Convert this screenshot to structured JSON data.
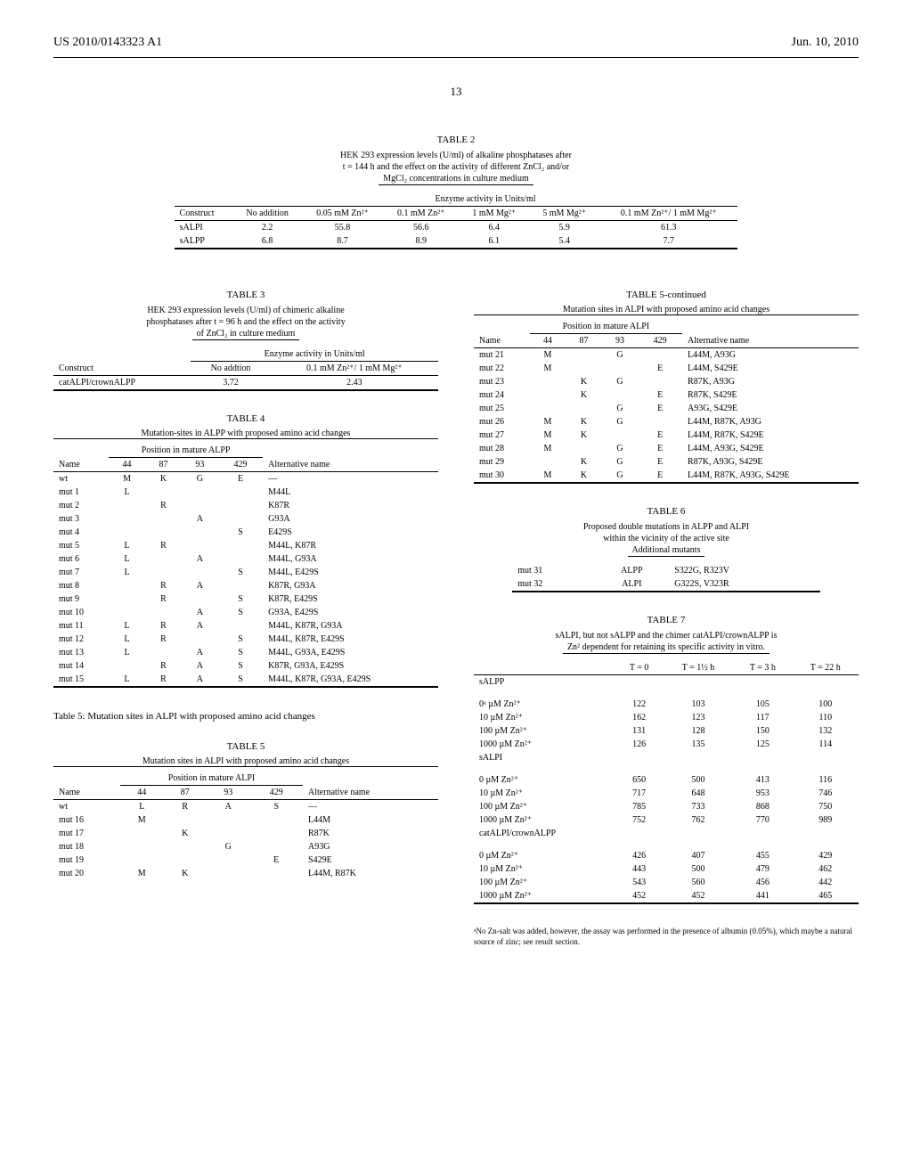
{
  "header": {
    "left": "US 2010/0143323 A1",
    "right": "Jun. 10, 2010"
  },
  "page_number": "13",
  "table2": {
    "title": "TABLE 2",
    "caption1": "HEK 293 expression levels (U/ml) of alkaline phosphatases after",
    "caption2": "t = 144 h and the effect on the activity of different ZnCl₂ and/or",
    "caption3": "MgCl₂ concentrations in culture medium",
    "span_header": "Enzyme activity in Units/ml",
    "col_construct": "Construct",
    "cols": [
      "No addition",
      "0.05 mM Zn²⁺",
      "0.1 mM Zn²⁺",
      "1 mM Mg²⁺",
      "5 mM Mg²⁺",
      "0.1 mM Zn²⁺/ 1 mM Mg²⁺"
    ],
    "rows": [
      {
        "name": "sALPI",
        "vals": [
          "2.2",
          "55.8",
          "56.6",
          "6.4",
          "5.9",
          "61.3"
        ]
      },
      {
        "name": "sALPP",
        "vals": [
          "6.8",
          "8.7",
          "8.9",
          "6.1",
          "5.4",
          "7.7"
        ]
      }
    ]
  },
  "table3": {
    "title": "TABLE 3",
    "caption1": "HEK 293 expression levels (U/ml) of chimeric alkaline",
    "caption2": "phosphatases after t = 96 h and the effect on the activity",
    "caption3": "of ZnCl₂ in culture medium",
    "span_header": "Enzyme activity in Units/ml",
    "col_construct": "Construct",
    "cols": [
      "No addtion",
      "0.1 mM Zn²⁺/ 1 mM Mg²⁺"
    ],
    "rows": [
      {
        "name": "catALPI/crownALPP",
        "vals": [
          "3.72",
          "2.43"
        ]
      }
    ]
  },
  "table4": {
    "title": "TABLE 4",
    "caption": "Mutation-sites in ALPP with proposed amino acid changes",
    "subhead": "Position in mature ALPP",
    "col_name": "Name",
    "positions": [
      "44",
      "87",
      "93",
      "429"
    ],
    "col_alt": "Alternative name",
    "rows": [
      {
        "n": "wt",
        "p": [
          "M",
          "K",
          "G",
          "E"
        ],
        "a": "—"
      },
      {
        "n": "mut 1",
        "p": [
          "L",
          "",
          "",
          ""
        ],
        "a": "M44L"
      },
      {
        "n": "mut 2",
        "p": [
          "",
          "R",
          "",
          ""
        ],
        "a": "K87R"
      },
      {
        "n": "mut 3",
        "p": [
          "",
          "",
          "A",
          ""
        ],
        "a": "G93A"
      },
      {
        "n": "mut 4",
        "p": [
          "",
          "",
          "",
          "S"
        ],
        "a": "E429S"
      },
      {
        "n": "mut 5",
        "p": [
          "L",
          "R",
          "",
          ""
        ],
        "a": "M44L, K87R"
      },
      {
        "n": "mut 6",
        "p": [
          "L",
          "",
          "A",
          ""
        ],
        "a": "M44L, G93A"
      },
      {
        "n": "mut 7",
        "p": [
          "L",
          "",
          "",
          "S"
        ],
        "a": "M44L, E429S"
      },
      {
        "n": "mut 8",
        "p": [
          "",
          "R",
          "A",
          ""
        ],
        "a": "K87R, G93A"
      },
      {
        "n": "mut 9",
        "p": [
          "",
          "R",
          "",
          "S"
        ],
        "a": "K87R, E429S"
      },
      {
        "n": "mut 10",
        "p": [
          "",
          "",
          "A",
          "S"
        ],
        "a": "G93A, E429S"
      },
      {
        "n": "mut 11",
        "p": [
          "L",
          "R",
          "A",
          ""
        ],
        "a": "M44L, K87R, G93A"
      },
      {
        "n": "mut 12",
        "p": [
          "L",
          "R",
          "",
          "S"
        ],
        "a": "M44L, K87R, E429S"
      },
      {
        "n": "mut 13",
        "p": [
          "L",
          "",
          "A",
          "S"
        ],
        "a": "M44L, G93A, E429S"
      },
      {
        "n": "mut 14",
        "p": [
          "",
          "R",
          "A",
          "S"
        ],
        "a": "K87R, G93A, E429S"
      },
      {
        "n": "mut 15",
        "p": [
          "L",
          "R",
          "A",
          "S"
        ],
        "a": "M44L, K87R, G93A, E429S"
      }
    ]
  },
  "table5_intro": "Table 5: Mutation sites in ALPI with proposed amino acid changes",
  "table5": {
    "title": "TABLE 5",
    "caption": "Mutation sites in ALPI with proposed amino acid changes",
    "subhead": "Position in mature ALPI",
    "col_name": "Name",
    "positions": [
      "44",
      "87",
      "93",
      "429"
    ],
    "col_alt": "Alternative name",
    "rows_a": [
      {
        "n": "wt",
        "p": [
          "L",
          "R",
          "A",
          "S"
        ],
        "a": "—"
      },
      {
        "n": "mut 16",
        "p": [
          "M",
          "",
          "",
          ""
        ],
        "a": "L44M"
      },
      {
        "n": "mut 17",
        "p": [
          "",
          "K",
          "",
          ""
        ],
        "a": "R87K"
      },
      {
        "n": "mut 18",
        "p": [
          "",
          "",
          "G",
          ""
        ],
        "a": "A93G"
      },
      {
        "n": "mut 19",
        "p": [
          "",
          "",
          "",
          "E"
        ],
        "a": "S429E"
      },
      {
        "n": "mut 20",
        "p": [
          "M",
          "K",
          "",
          ""
        ],
        "a": "L44M, R87K"
      }
    ]
  },
  "table5cont": {
    "title": "TABLE 5-continued",
    "caption": "Mutation sites in ALPI with proposed amino acid changes",
    "subhead": "Position in mature ALPI",
    "col_name": "Name",
    "positions": [
      "44",
      "87",
      "93",
      "429"
    ],
    "col_alt": "Alternative name",
    "rows": [
      {
        "n": "mut 21",
        "p": [
          "M",
          "",
          "G",
          ""
        ],
        "a": "L44M, A93G"
      },
      {
        "n": "mut 22",
        "p": [
          "M",
          "",
          "",
          "E"
        ],
        "a": "L44M, S429E"
      },
      {
        "n": "mut 23",
        "p": [
          "",
          "K",
          "G",
          ""
        ],
        "a": "R87K, A93G"
      },
      {
        "n": "mut 24",
        "p": [
          "",
          "K",
          "",
          "E"
        ],
        "a": "R87K, S429E"
      },
      {
        "n": "mut 25",
        "p": [
          "",
          "",
          "G",
          "E"
        ],
        "a": "A93G, S429E"
      },
      {
        "n": "mut 26",
        "p": [
          "M",
          "K",
          "G",
          ""
        ],
        "a": "L44M, R87K, A93G"
      },
      {
        "n": "mut 27",
        "p": [
          "M",
          "K",
          "",
          "E"
        ],
        "a": "L44M, R87K, S429E"
      },
      {
        "n": "mut 28",
        "p": [
          "M",
          "",
          "G",
          "E"
        ],
        "a": "L44M, A93G, S429E"
      },
      {
        "n": "mut 29",
        "p": [
          "",
          "K",
          "G",
          "E"
        ],
        "a": "R87K, A93G, S429E"
      },
      {
        "n": "mut 30",
        "p": [
          "M",
          "K",
          "G",
          "E"
        ],
        "a": "L44M, R87K, A93G, S429E"
      }
    ]
  },
  "table6": {
    "title": "TABLE 6",
    "caption1": "Proposed double mutations in ALPP and ALPI",
    "caption2": "within the vicinity of the active site",
    "caption3": "Additional mutants",
    "rows": [
      {
        "n": "mut 31",
        "t": "ALPP",
        "m": "S322G, R323V"
      },
      {
        "n": "mut 32",
        "t": "ALPI",
        "m": "G322S, V323R"
      }
    ]
  },
  "table7": {
    "title": "TABLE 7",
    "caption1": "sALPI, but not sALPP and the chimer catALPI/crownALPP is",
    "caption2": "Zn² dependent for retaining its specific activity in vitro.",
    "cols": [
      "T = 0",
      "T = 1½ h",
      "T = 3 h",
      "T = 22 h"
    ],
    "groups": [
      {
        "name": "sALPP",
        "rows": [
          {
            "l": "0ᵃ µM Zn²⁺",
            "v": [
              "122",
              "103",
              "105",
              "100"
            ]
          },
          {
            "l": "10 µM Zn²⁺",
            "v": [
              "162",
              "123",
              "117",
              "110"
            ]
          },
          {
            "l": "100 µM Zn²⁺",
            "v": [
              "131",
              "128",
              "150",
              "132"
            ]
          },
          {
            "l": "1000 µM Zn²⁺",
            "v": [
              "126",
              "135",
              "125",
              "114"
            ]
          }
        ]
      },
      {
        "name": "sALPI",
        "rows": [
          {
            "l": "0 µM Zn²⁺",
            "v": [
              "650",
              "500",
              "413",
              "116"
            ]
          },
          {
            "l": "10 µM Zn²⁺",
            "v": [
              "717",
              "648",
              "953",
              "746"
            ]
          },
          {
            "l": "100 µM Zn²⁺",
            "v": [
              "785",
              "733",
              "868",
              "750"
            ]
          },
          {
            "l": "1000 µM Zn²⁺",
            "v": [
              "752",
              "762",
              "770",
              "989"
            ]
          }
        ]
      },
      {
        "name": "catALPI/crownALPP",
        "rows": [
          {
            "l": "0 µM Zn²⁺",
            "v": [
              "426",
              "407",
              "455",
              "429"
            ]
          },
          {
            "l": "10 µM Zn²⁺",
            "v": [
              "443",
              "500",
              "479",
              "462"
            ]
          },
          {
            "l": "100 µM Zn²⁺",
            "v": [
              "543",
              "560",
              "456",
              "442"
            ]
          },
          {
            "l": "1000 µM Zn²⁺",
            "v": [
              "452",
              "452",
              "441",
              "465"
            ]
          }
        ]
      }
    ],
    "footnote": "ᵃNo Zn-salt was added, however, the assay was performed in the presence of albumin (0.05%), which maybe a natural source of zinc; see result section."
  }
}
